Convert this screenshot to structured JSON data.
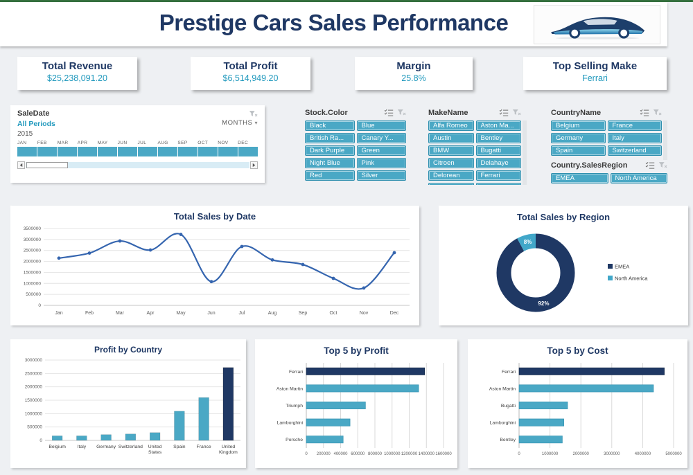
{
  "header": {
    "title": "Prestige Cars Sales Performance",
    "logo_icon": "car-icon"
  },
  "colors": {
    "accent_teal": "#4aa8c5",
    "navy": "#1f3864",
    "kpi_value_teal": "#2199bd",
    "line_blue": "#3565af",
    "background": "#eef0f3",
    "top_bar_green": "#35703e"
  },
  "icons": [
    "car-icon",
    "clear-filter-icon",
    "multi-select-icon",
    "chevron-down-icon",
    "scroll-left-icon",
    "scroll-right-icon"
  ],
  "kpis": [
    {
      "label": "Total Revenue",
      "value": "$25,238,091.20"
    },
    {
      "label": "Total Profit",
      "value": "$6,514,949.20"
    },
    {
      "label": "Margin",
      "value": "25.8%"
    },
    {
      "label": "Top Selling Make",
      "value": "Ferrari"
    }
  ],
  "timeline": {
    "title": "SaleDate",
    "period_label": "All Periods",
    "granularity": "MONTHS",
    "year": "2015",
    "months": [
      "JAN",
      "FEB",
      "MAR",
      "APR",
      "MAY",
      "JUN",
      "JUL",
      "AUG",
      "SEP",
      "OCT",
      "NOV",
      "DEC"
    ]
  },
  "slicers": [
    {
      "title": "Stock.Color",
      "items": [
        "Black",
        "Blue",
        "British Ra...",
        "Canary Y...",
        "Dark Purple",
        "Green",
        "Night Blue",
        "Pink",
        "Red",
        "Silver"
      ]
    },
    {
      "title": "MakeName",
      "items": [
        "Alfa Romeo",
        "Aston Ma...",
        "Austin",
        "Bentley",
        "BMW",
        "Bugatti",
        "Citroen",
        "Delahaye",
        "Delorean",
        "Ferrari"
      ]
    },
    {
      "title": "CountryName",
      "items": [
        "Belgium",
        "France",
        "Germany",
        "Italy",
        "Spain",
        "Switzerland"
      ]
    },
    {
      "title": "Country.SalesRegion",
      "items": [
        "EMEA",
        "North America"
      ]
    }
  ],
  "chart_data": [
    {
      "type": "line",
      "title": "Total Sales by Date",
      "x": [
        "Jan",
        "Feb",
        "Mar",
        "Apr",
        "May",
        "Jun",
        "Jul",
        "Aug",
        "Sep",
        "Oct",
        "Nov",
        "Dec"
      ],
      "values": [
        2150000,
        2380000,
        2930000,
        2520000,
        3230000,
        1080000,
        2680000,
        2070000,
        1860000,
        1230000,
        790000,
        2400000
      ],
      "ylim": [
        0,
        3500000
      ],
      "ytick": 500000,
      "color": "#3565af",
      "xlabel": "",
      "ylabel": "",
      "grid": true,
      "markers": true
    },
    {
      "type": "donut",
      "title": "Total Sales by Region",
      "slices": [
        {
          "label": "EMEA",
          "value": 92,
          "color": "#1f3864"
        },
        {
          "label": "North America",
          "value": 8,
          "color": "#41a7c9"
        }
      ],
      "data_labels": [
        "92%",
        "8%"
      ],
      "legend_position": "right"
    },
    {
      "type": "bar",
      "title": "Profit by Country",
      "categories": [
        "Belgium",
        "Italy",
        "Germany",
        "Switzerland",
        "United States",
        "Spain",
        "France",
        "United Kingdom"
      ],
      "values": [
        170000,
        170000,
        215000,
        240000,
        290000,
        1090000,
        1600000,
        2720000
      ],
      "colors": [
        "#4aa8c5",
        "#4aa8c5",
        "#4aa8c5",
        "#4aa8c5",
        "#4aa8c5",
        "#4aa8c5",
        "#4aa8c5",
        "#1f3864"
      ],
      "ylim": [
        0,
        3000000
      ],
      "ytick": 500000,
      "xlabel": "",
      "ylabel": "",
      "grid": true
    },
    {
      "type": "hbar",
      "title": "Top 5 by Profit",
      "categories": [
        "Ferrari",
        "Aston Martin",
        "Triumph",
        "Lamborghini",
        "Porsche"
      ],
      "values": [
        1380000,
        1310000,
        690000,
        510000,
        430000
      ],
      "colors": [
        "#1f3864",
        "#4aa8c5",
        "#4aa8c5",
        "#4aa8c5",
        "#4aa8c5"
      ],
      "xlim": [
        0,
        1600000
      ],
      "xtick": 200000,
      "xlabel": "",
      "ylabel": "",
      "grid": true
    },
    {
      "type": "hbar",
      "title": "Top 5 by Cost",
      "categories": [
        "Ferrari",
        "Aston Martin",
        "Bugatti",
        "Lamborghini",
        "Bentley"
      ],
      "values": [
        4700000,
        4350000,
        1570000,
        1450000,
        1400000
      ],
      "colors": [
        "#1f3864",
        "#4aa8c5",
        "#4aa8c5",
        "#4aa8c5",
        "#4aa8c5"
      ],
      "xlim": [
        0,
        5000000
      ],
      "xtick": 1000000,
      "xlabel": "",
      "ylabel": "",
      "grid": true
    }
  ]
}
